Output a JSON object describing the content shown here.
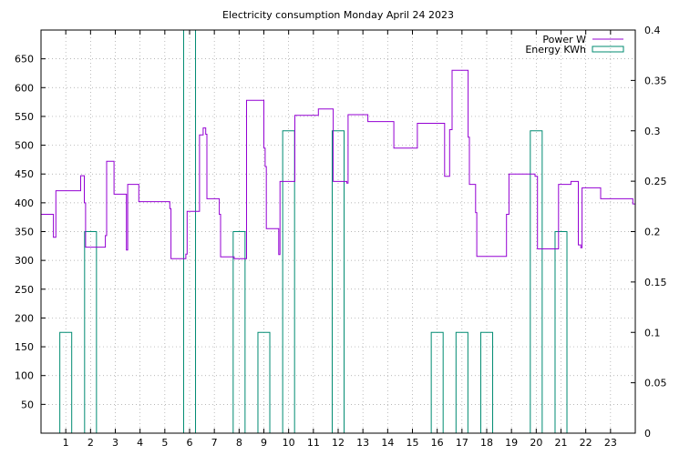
{
  "chart_data": {
    "type": "line",
    "title": "Electricity consumption Monday April 24 2023",
    "xlabel": "",
    "ylabel": "",
    "y2label": "",
    "xlim": [
      0,
      24
    ],
    "ylim": [
      0,
      700
    ],
    "y2lim": [
      0,
      0.4
    ],
    "xticks": [
      "1",
      "2",
      "3",
      "4",
      "5",
      "6",
      "7",
      "8",
      "9",
      "10",
      "11",
      "12",
      "13",
      "14",
      "15",
      "16",
      "17",
      "18",
      "19",
      "20",
      "21",
      "22",
      "23"
    ],
    "yticks": [
      "50",
      "100",
      "150",
      "200",
      "250",
      "300",
      "350",
      "400",
      "450",
      "500",
      "550",
      "600",
      "650"
    ],
    "y2ticks": [
      "0",
      "0.05",
      "0.1",
      "0.15",
      "0.2",
      "0.25",
      "0.3",
      "0.35",
      "0.4"
    ],
    "grid": true,
    "legend_position": "top-right",
    "series": [
      {
        "name": "Power W",
        "axis": "y1",
        "style": "step",
        "color": "#9400d3",
        "points": [
          [
            0.0,
            380
          ],
          [
            0.5,
            380
          ],
          [
            0.5,
            340
          ],
          [
            0.6,
            340
          ],
          [
            0.6,
            421
          ],
          [
            1.6,
            421
          ],
          [
            1.6,
            447
          ],
          [
            1.75,
            447
          ],
          [
            1.75,
            400
          ],
          [
            1.8,
            400
          ],
          [
            1.8,
            323
          ],
          [
            2.6,
            323
          ],
          [
            2.6,
            343
          ],
          [
            2.65,
            343
          ],
          [
            2.65,
            472
          ],
          [
            2.95,
            472
          ],
          [
            2.95,
            415
          ],
          [
            3.45,
            415
          ],
          [
            3.45,
            318
          ],
          [
            3.5,
            318
          ],
          [
            3.5,
            432
          ],
          [
            3.95,
            432
          ],
          [
            3.95,
            402
          ],
          [
            5.2,
            402
          ],
          [
            5.2,
            390
          ],
          [
            5.25,
            390
          ],
          [
            5.25,
            303
          ],
          [
            5.85,
            303
          ],
          [
            5.85,
            311
          ],
          [
            5.9,
            311
          ],
          [
            5.9,
            385
          ],
          [
            6.4,
            385
          ],
          [
            6.4,
            518
          ],
          [
            6.55,
            518
          ],
          [
            6.55,
            530
          ],
          [
            6.65,
            530
          ],
          [
            6.65,
            519
          ],
          [
            6.7,
            519
          ],
          [
            6.7,
            407
          ],
          [
            7.2,
            407
          ],
          [
            7.2,
            380
          ],
          [
            7.25,
            380
          ],
          [
            7.25,
            306
          ],
          [
            7.8,
            306
          ],
          [
            7.8,
            303
          ],
          [
            8.3,
            303
          ],
          [
            8.3,
            578
          ],
          [
            9.0,
            578
          ],
          [
            9.0,
            495
          ],
          [
            9.05,
            495
          ],
          [
            9.05,
            463
          ],
          [
            9.1,
            463
          ],
          [
            9.1,
            355
          ],
          [
            9.6,
            355
          ],
          [
            9.6,
            310
          ],
          [
            9.65,
            310
          ],
          [
            9.65,
            437
          ],
          [
            10.25,
            437
          ],
          [
            10.25,
            552
          ],
          [
            11.2,
            552
          ],
          [
            11.2,
            563
          ],
          [
            11.8,
            563
          ],
          [
            11.8,
            437
          ],
          [
            12.35,
            437
          ],
          [
            12.35,
            434
          ],
          [
            12.4,
            434
          ],
          [
            12.4,
            553
          ],
          [
            13.2,
            553
          ],
          [
            13.2,
            541
          ],
          [
            14.25,
            541
          ],
          [
            14.25,
            495
          ],
          [
            15.2,
            495
          ],
          [
            15.2,
            538
          ],
          [
            16.3,
            538
          ],
          [
            16.3,
            446
          ],
          [
            16.5,
            446
          ],
          [
            16.5,
            527
          ],
          [
            16.6,
            527
          ],
          [
            16.6,
            630
          ],
          [
            17.25,
            630
          ],
          [
            17.25,
            514
          ],
          [
            17.3,
            514
          ],
          [
            17.3,
            432
          ],
          [
            17.55,
            432
          ],
          [
            17.55,
            383
          ],
          [
            17.6,
            383
          ],
          [
            17.6,
            307
          ],
          [
            18.8,
            307
          ],
          [
            18.8,
            380
          ],
          [
            18.9,
            380
          ],
          [
            18.9,
            450
          ],
          [
            19.95,
            450
          ],
          [
            19.95,
            446
          ],
          [
            20.05,
            446
          ],
          [
            20.05,
            320
          ],
          [
            20.9,
            320
          ],
          [
            20.9,
            432
          ],
          [
            21.4,
            432
          ],
          [
            21.4,
            437
          ],
          [
            21.7,
            437
          ],
          [
            21.7,
            327
          ],
          [
            21.8,
            327
          ],
          [
            21.8,
            322
          ],
          [
            21.85,
            322
          ],
          [
            21.85,
            426
          ],
          [
            22.6,
            426
          ],
          [
            22.6,
            407
          ],
          [
            23.9,
            407
          ],
          [
            23.9,
            398
          ],
          [
            24.0,
            398
          ]
        ]
      },
      {
        "name": "Energy KWh",
        "axis": "y2",
        "style": "boxes",
        "color": "#008b72",
        "boxes": [
          [
            1,
            0.1
          ],
          [
            2,
            0.2
          ],
          [
            6,
            0.4
          ],
          [
            8,
            0.2
          ],
          [
            9,
            0.1
          ],
          [
            10,
            0.3
          ],
          [
            12,
            0.3
          ],
          [
            16,
            0.1
          ],
          [
            17,
            0.1
          ],
          [
            18,
            0.1
          ],
          [
            20,
            0.3
          ],
          [
            21,
            0.2
          ]
        ]
      }
    ]
  }
}
